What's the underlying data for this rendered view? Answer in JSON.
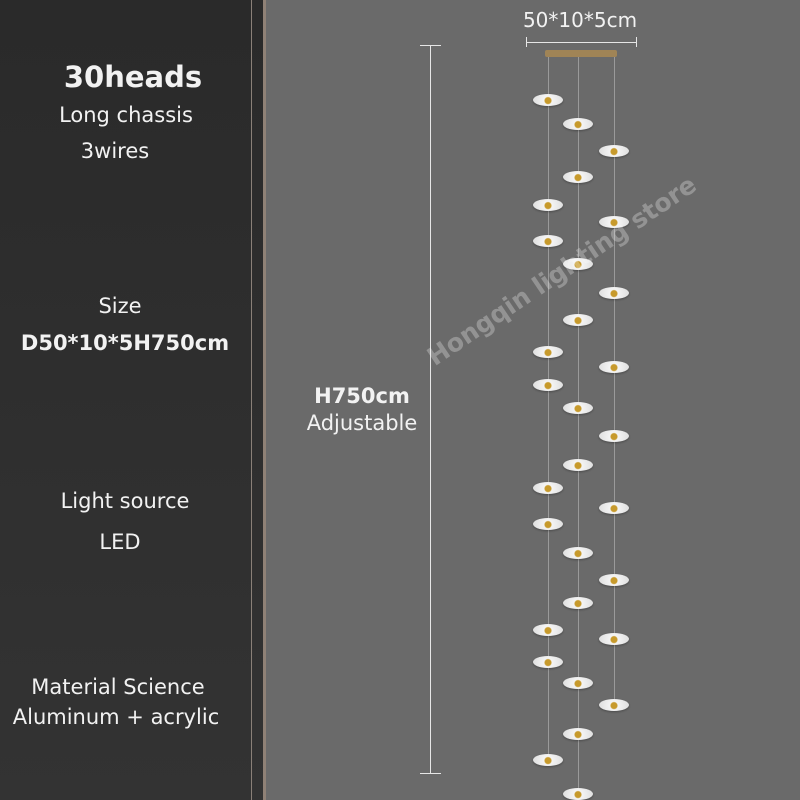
{
  "specs": {
    "heads": "30heads",
    "chassis": "Long chassis",
    "wires": "3wires",
    "size_label": "Size",
    "size_value": "D50*10*5H750cm",
    "light_label": "Light source",
    "light_value": "LED",
    "material_label": "Material Science",
    "material_value": "Aluminum + acrylic"
  },
  "dimensions": {
    "chassis_size": "50*10*5cm",
    "height": "H750cm",
    "height_note": "Adjustable"
  },
  "watermark": "Hongqin lighting store",
  "colors": {
    "panel": "#2b2b2b",
    "background": "#6a6a6a",
    "chassis": "#a08456",
    "accent_gold": "#c79a2c"
  }
}
